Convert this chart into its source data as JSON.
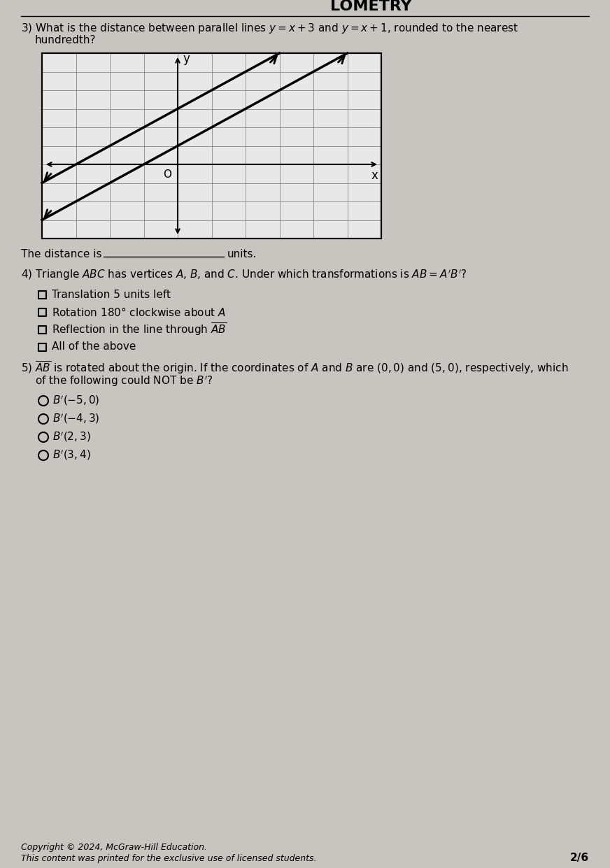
{
  "page_bg": "#c8c4c0",
  "title": "LOMETRY",
  "q3_line1": "3) What is the distance between parallel lines $y = x + 3$ and $y = x + 1$, rounded to the nearest",
  "q3_line2": "hundredth?",
  "distance_label": "The distance is",
  "units_label": "units.",
  "q4_text": "4) Triangle $ABC$ has vertices $A$, $B$, and $C$. Under which transformations is $AB = A'B'$?",
  "q4_options": [
    "Translation 5 units left",
    "Rotation 180° clockwise about $A$",
    "Reflection in the line through $\\overline{AB}$",
    "All of the above"
  ],
  "q5_line1": "5) $\\overline{AB}$ is rotated about the origin. If the coordinates of $A$ and $B$ are $(0, 0)$ and $(5, 0)$, respectively, which",
  "q5_line2": "of the following could NOT be $B'$?",
  "q5_options": [
    "$B'(-5, 0)$",
    "$B'(-4, 3)$",
    "$B'(2, 3)$",
    "$B'(3, 4)$"
  ],
  "copyright": "Copyright © 2024, McGraw-Hill Education.",
  "footer": "This content was printed for the exclusive use of licensed students.",
  "page_num": "2/6"
}
